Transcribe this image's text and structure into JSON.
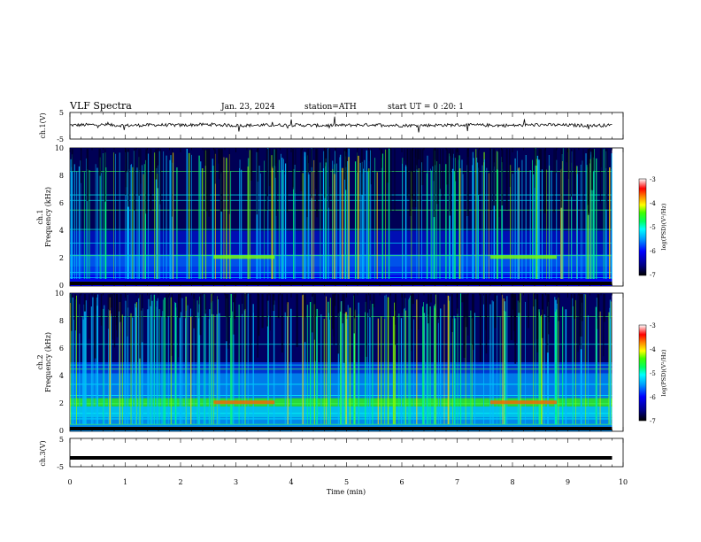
{
  "header": {
    "title": "VLF Spectra",
    "date": "Jan. 23, 2024",
    "station": "station=ATH",
    "start": "start UT =  0 :20: 1"
  },
  "colors": {
    "colormap": [
      "#000080",
      "#0000ff",
      "#00a0ff",
      "#00ffff",
      "#00ff80",
      "#40ff00",
      "#ffff00",
      "#ff8000",
      "#ff0000",
      "#ffffff"
    ],
    "trace": "#000000"
  },
  "chart_data": [
    {
      "type": "line",
      "name": "ch1-waveform",
      "ylabel": "ch.1(V)",
      "ylim": [
        -5,
        5
      ],
      "yticks": [
        "5",
        "-5"
      ],
      "xlim": [
        0,
        10
      ],
      "x": [
        0,
        0.5,
        1,
        1.5,
        2,
        2.5,
        3,
        3.5,
        4,
        4.5,
        5,
        5.5,
        6,
        6.5,
        7,
        7.5,
        8,
        8.5,
        9,
        9.5,
        9.8
      ],
      "y": [
        0.2,
        0.4,
        0.1,
        0.3,
        0.2,
        0.5,
        0.1,
        0.2,
        0.3,
        0.1,
        0.2,
        0.4,
        0.1,
        0.2,
        0.3,
        0.2,
        0.1,
        0.4,
        0.2,
        0.1,
        0.2
      ]
    },
    {
      "type": "heatmap",
      "name": "ch1-spectrogram",
      "ylabel": "ch.1\nFrequency (kHz)",
      "ylim": [
        0,
        10
      ],
      "yticks": [
        "10",
        "8",
        "6",
        "4",
        "2",
        "0"
      ],
      "xlim": [
        0,
        9.8
      ],
      "colorbar": {
        "label": "log(PSD)(V²/Hz)",
        "range": [
          -7,
          -3
        ],
        "ticks": [
          "-3",
          "-4",
          "-5",
          "-6",
          "-7"
        ]
      }
    },
    {
      "type": "heatmap",
      "name": "ch2-spectrogram",
      "ylabel": "ch.2\nFrequency (kHz)",
      "ylim": [
        0,
        10
      ],
      "yticks": [
        "10",
        "8",
        "6",
        "4",
        "2",
        "0"
      ],
      "xlim": [
        0,
        9.8
      ],
      "colorbar": {
        "label": "log(PSD)(V²/Hz)",
        "range": [
          -7,
          -3
        ],
        "ticks": [
          "-3",
          "-4",
          "-5",
          "-6",
          "-7"
        ]
      }
    },
    {
      "type": "line",
      "name": "ch3-waveform",
      "ylabel": "ch.3(V)",
      "ylim": [
        -5,
        5
      ],
      "yticks": [
        "5",
        "-5"
      ],
      "xlim": [
        0,
        10
      ],
      "x": [
        0,
        9.8
      ],
      "y": [
        -2,
        -2
      ]
    }
  ],
  "xaxis": {
    "label": "Time (min)",
    "ticks": [
      "0",
      "1",
      "2",
      "3",
      "4",
      "5",
      "6",
      "7",
      "8",
      "9",
      "10"
    ]
  }
}
